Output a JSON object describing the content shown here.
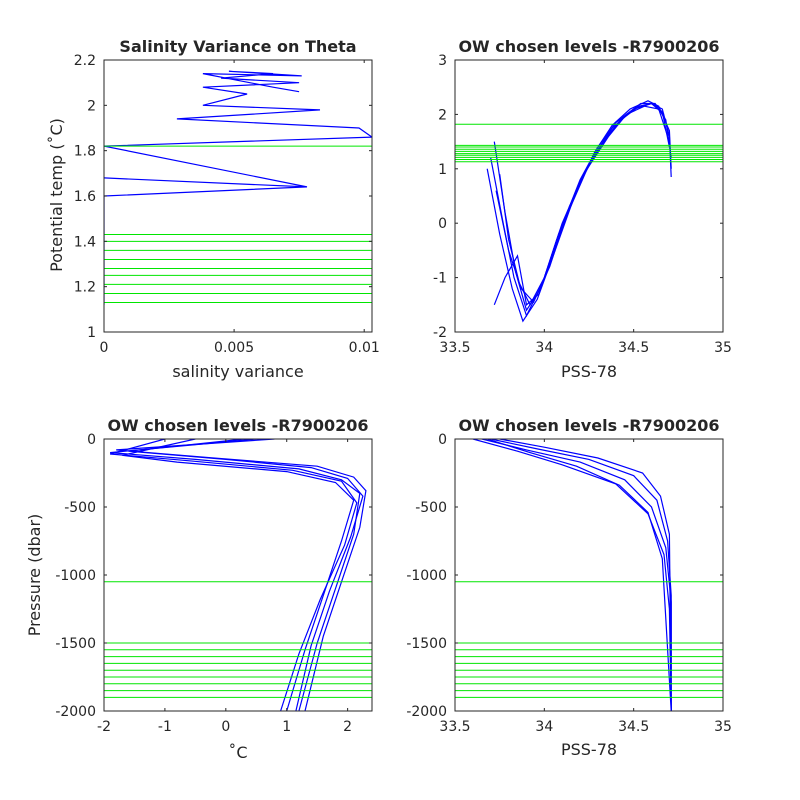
{
  "colors": {
    "profile": "#0000ff",
    "levels": "#00e600",
    "axes": "#262626",
    "background": "#ffffff"
  },
  "chart_data": [
    {
      "id": "salvar",
      "type": "line",
      "title": "Salinity Variance on Theta",
      "xlabel": "salinity variance",
      "ylabel": "Potential temp (˚C)",
      "xlim": [
        0,
        0.0103
      ],
      "ylim": [
        1,
        2.2
      ],
      "xticks": [
        0,
        0.005,
        0.01
      ],
      "xtick_labels": [
        "0",
        "0.005",
        "0.01"
      ],
      "yticks": [
        1,
        1.2,
        1.4,
        1.6,
        1.8,
        2,
        2.2
      ],
      "ytick_labels": [
        "1",
        "1.2",
        "1.4",
        "1.6",
        "1.8",
        "2",
        "2.2"
      ],
      "grid": false,
      "series": [
        {
          "color": "#0000ff",
          "x": [
            0,
            0,
            0,
            0,
            0,
            0,
            0,
            0,
            0,
            0,
            0,
            0,
            0,
            0.0078,
            0,
            0.0078,
            0,
            0.0103,
            0,
            0.0103,
            0.0098,
            0.0028,
            0.0083,
            0.0038,
            0.0055,
            0.0038,
            0.0075,
            0.0045,
            0.0065,
            0.0048,
            0.0076,
            0.0038,
            0.0065,
            0.0075
          ],
          "y": [
            1.12,
            1.14,
            1.18,
            1.22,
            1.26,
            1.3,
            1.34,
            1.38,
            1.42,
            1.45,
            1.5,
            1.55,
            1.6,
            1.64,
            1.68,
            1.64,
            1.82,
            1.86,
            1.82,
            1.86,
            1.9,
            1.94,
            1.98,
            2.0,
            2.05,
            2.08,
            2.1,
            2.12,
            2.14,
            2.15,
            2.13,
            2.14,
            2.08,
            2.06
          ]
        }
      ],
      "hlines": [
        1.13,
        1.17,
        1.21,
        1.25,
        1.28,
        1.32,
        1.36,
        1.4,
        1.43,
        1.82
      ]
    },
    {
      "id": "ts",
      "type": "line",
      "title": "OW chosen levels -R7900206",
      "xlabel": "PSS-78",
      "ylabel": "",
      "xlim": [
        33.5,
        35
      ],
      "ylim": [
        -2,
        3
      ],
      "xticks": [
        33.5,
        34,
        34.5,
        35
      ],
      "xtick_labels": [
        "33.5",
        "34",
        "34.5",
        "35"
      ],
      "yticks": [
        -2,
        -1,
        0,
        1,
        2,
        3
      ],
      "ytick_labels": [
        "-2",
        "-1",
        "0",
        "1",
        "2",
        "3"
      ],
      "grid": false,
      "series": [
        {
          "color": "#0000ff",
          "x": [
            33.72,
            33.78,
            33.84,
            33.9,
            33.98,
            34.08,
            34.2,
            34.3,
            34.4,
            34.5,
            34.6,
            34.66,
            34.7,
            34.71
          ],
          "y": [
            1.5,
            0.2,
            -0.9,
            -1.6,
            -1.2,
            -0.2,
            0.8,
            1.4,
            1.85,
            2.1,
            2.2,
            2.1,
            1.6,
            0.85
          ]
        },
        {
          "color": "#0000ff",
          "x": [
            33.68,
            33.75,
            33.82,
            33.88,
            33.96,
            34.06,
            34.18,
            34.28,
            34.38,
            34.48,
            34.58,
            34.64,
            34.7,
            34.71
          ],
          "y": [
            1.0,
            -0.2,
            -1.2,
            -1.8,
            -1.4,
            -0.5,
            0.6,
            1.3,
            1.8,
            2.1,
            2.25,
            2.15,
            1.7,
            1.0
          ]
        },
        {
          "color": "#0000ff",
          "x": [
            33.75,
            33.8,
            33.86,
            33.92,
            34.0,
            34.1,
            34.22,
            34.34,
            34.44,
            34.54,
            34.62,
            34.68,
            34.71
          ],
          "y": [
            0.9,
            -0.3,
            -1.1,
            -1.5,
            -1.0,
            0.0,
            0.9,
            1.55,
            1.95,
            2.2,
            2.2,
            1.9,
            1.2
          ]
        },
        {
          "color": "#0000ff",
          "x": [
            33.7,
            33.77,
            33.83,
            33.9,
            33.99,
            34.12,
            34.24,
            34.36,
            34.46,
            34.56,
            34.64,
            34.7
          ],
          "y": [
            1.2,
            0.0,
            -1.0,
            -1.7,
            -1.1,
            0.1,
            1.0,
            1.6,
            2.0,
            2.15,
            2.1,
            1.5
          ]
        },
        {
          "color": "#0000ff",
          "x": [
            33.73,
            33.8,
            33.87,
            33.94,
            34.03,
            34.14,
            34.26,
            34.38,
            34.5,
            34.6,
            34.66,
            34.7
          ],
          "y": [
            0.6,
            -0.5,
            -1.2,
            -1.45,
            -0.8,
            0.3,
            1.15,
            1.75,
            2.1,
            2.2,
            2.05,
            1.4
          ]
        },
        {
          "color": "#0000ff",
          "x": [
            33.72,
            33.78,
            33.85,
            33.9,
            33.97,
            34.07,
            34.19,
            34.31,
            34.43,
            34.53,
            34.6,
            34.67
          ],
          "y": [
            -1.5,
            -1.0,
            -0.6,
            -1.5,
            -1.3,
            -0.3,
            0.7,
            1.4,
            1.9,
            2.15,
            2.2,
            2.0
          ]
        }
      ],
      "hlines": [
        1.13,
        1.17,
        1.21,
        1.25,
        1.28,
        1.32,
        1.36,
        1.4,
        1.43,
        1.82
      ]
    },
    {
      "id": "tp",
      "type": "line",
      "title": "OW chosen levels -R7900206",
      "xlabel": "˚C",
      "ylabel": "Pressure (dbar)",
      "xlim": [
        -2,
        2.4
      ],
      "ylim": [
        -2000,
        0
      ],
      "xticks": [
        -2,
        -1,
        0,
        1,
        2
      ],
      "xtick_labels": [
        "-2",
        "-1",
        "0",
        "1",
        "2"
      ],
      "yticks": [
        -2000,
        -1500,
        -1000,
        -500,
        0
      ],
      "ytick_labels": [
        "-2000",
        "-1500",
        "-1000",
        "-500",
        "0"
      ],
      "grid": false,
      "series": [
        {
          "color": "#0000ff",
          "x": [
            0.5,
            -1.9,
            -0.5,
            1.2,
            1.9,
            2.2,
            2.1,
            1.8,
            1.5,
            1.2
          ],
          "y": [
            0,
            -100,
            -150,
            -220,
            -300,
            -400,
            -700,
            -1100,
            -1500,
            -2000
          ]
        },
        {
          "color": "#0000ff",
          "x": [
            0.8,
            -1.8,
            -0.2,
            1.5,
            2.1,
            2.3,
            2.2,
            1.9,
            1.6,
            1.3
          ],
          "y": [
            0,
            -80,
            -140,
            -200,
            -280,
            -380,
            -650,
            -1050,
            -1450,
            -2000
          ]
        },
        {
          "color": "#0000ff",
          "x": [
            -0.5,
            -1.7,
            -0.8,
            1.0,
            1.8,
            2.1,
            1.9,
            1.6,
            1.3,
            1.0
          ],
          "y": [
            0,
            -120,
            -170,
            -240,
            -320,
            -450,
            -750,
            -1150,
            -1550,
            -2000
          ]
        },
        {
          "color": "#0000ff",
          "x": [
            0.3,
            -1.6,
            0.0,
            1.4,
            2.0,
            2.25,
            2.05,
            1.7,
            1.4,
            1.15
          ],
          "y": [
            0,
            -90,
            -150,
            -210,
            -290,
            -420,
            -720,
            -1120,
            -1520,
            -2000
          ]
        },
        {
          "color": "#0000ff",
          "x": [
            -1.0,
            -1.9,
            -0.6,
            1.1,
            1.9,
            2.15,
            1.95,
            1.55,
            1.2,
            0.9
          ],
          "y": [
            0,
            -110,
            -160,
            -230,
            -310,
            -470,
            -780,
            -1180,
            -1580,
            -2000
          ]
        }
      ],
      "hlines": [
        -1050,
        -1500,
        -1550,
        -1600,
        -1650,
        -1700,
        -1750,
        -1800,
        -1850,
        -1900
      ]
    },
    {
      "id": "sp",
      "type": "line",
      "title": "OW chosen levels -R7900206",
      "xlabel": "PSS-78",
      "ylabel": "",
      "xlim": [
        33.5,
        35
      ],
      "ylim": [
        -2000,
        0
      ],
      "xticks": [
        33.5,
        34,
        34.5,
        35
      ],
      "xtick_labels": [
        "33.5",
        "34",
        "34.5",
        "35"
      ],
      "yticks": [
        -2000,
        -1500,
        -1000,
        -500,
        0
      ],
      "ytick_labels": [
        "-2000",
        "-1500",
        "-1000",
        "-500",
        "0"
      ],
      "grid": false,
      "series": [
        {
          "color": "#0000ff",
          "x": [
            33.65,
            33.9,
            34.2,
            34.45,
            34.6,
            34.68,
            34.71,
            34.71
          ],
          "y": [
            0,
            -80,
            -170,
            -300,
            -500,
            -800,
            -1200,
            -2000
          ]
        },
        {
          "color": "#0000ff",
          "x": [
            33.7,
            33.95,
            34.25,
            34.5,
            34.63,
            34.69,
            34.71,
            34.71
          ],
          "y": [
            0,
            -70,
            -150,
            -270,
            -450,
            -750,
            -1150,
            -2000
          ]
        },
        {
          "color": "#0000ff",
          "x": [
            33.6,
            33.85,
            34.1,
            34.4,
            34.58,
            34.67,
            34.7,
            34.71
          ],
          "y": [
            0,
            -90,
            -190,
            -330,
            -550,
            -850,
            -1250,
            -2000
          ]
        },
        {
          "color": "#0000ff",
          "x": [
            33.75,
            34.0,
            34.3,
            34.55,
            34.65,
            34.7,
            34.71
          ],
          "y": [
            0,
            -60,
            -140,
            -250,
            -420,
            -700,
            -2000
          ]
        },
        {
          "color": "#0000ff",
          "x": [
            33.68,
            33.92,
            34.18,
            34.42,
            34.58,
            34.66,
            34.71
          ],
          "y": [
            0,
            -100,
            -200,
            -340,
            -540,
            -880,
            -2000
          ]
        }
      ],
      "hlines": [
        -1050,
        -1500,
        -1550,
        -1600,
        -1650,
        -1700,
        -1750,
        -1800,
        -1850,
        -1900
      ]
    }
  ]
}
